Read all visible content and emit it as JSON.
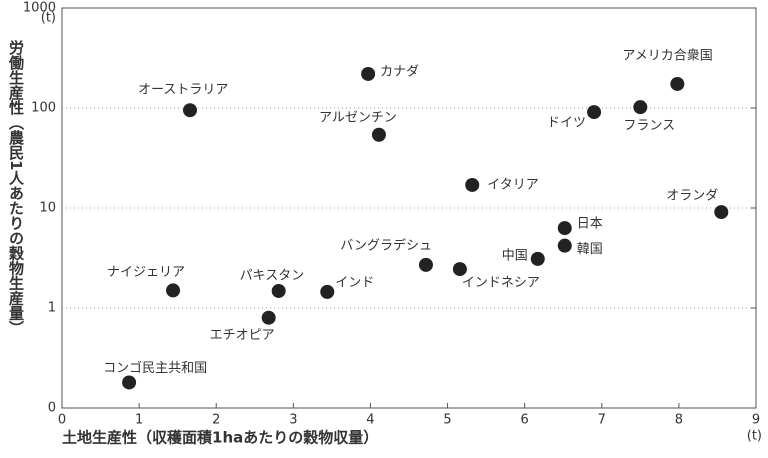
{
  "chart_data": {
    "type": "scatter",
    "xlabel": "土地生産性（収穫面積1haあたりの穀物収量）",
    "ylabel": "労働生産性（農民1人あたりの穀物生産量）",
    "x_unit": "(t)",
    "y_unit": "(t)",
    "labels": [
      "コンゴ民主共和国",
      "ナイジェリア",
      "オーストラリア",
      "エチオピア",
      "パキスタン",
      "インド",
      "カナダ",
      "アルゼンチン",
      "バングラデシュ",
      "インドネシア",
      "イタリア",
      "中国",
      "日本",
      "韓国",
      "ドイツ",
      "フランス",
      "アメリカ合衆国",
      "オランダ"
    ],
    "x": [
      0.87,
      1.44,
      1.66,
      2.68,
      2.81,
      3.44,
      3.97,
      4.11,
      4.72,
      5.16,
      5.32,
      6.17,
      6.52,
      6.52,
      6.9,
      7.5,
      7.98,
      8.55
    ],
    "values": [
      0.18,
      1.5,
      95,
      0.8,
      1.48,
      1.45,
      219,
      54,
      2.7,
      2.45,
      17,
      3.1,
      6.3,
      4.2,
      91,
      102,
      174,
      9.1
    ],
    "color": "#222222",
    "xlim": [
      0,
      9
    ],
    "xticks": [
      0,
      1,
      2,
      3,
      4,
      5,
      6,
      7,
      8,
      9
    ],
    "ylim": [
      0.1,
      1000
    ],
    "yticks": [
      {
        "value": 0.1,
        "label": "0"
      },
      1,
      10,
      100,
      1000
    ],
    "ylog": true,
    "grid": true
  }
}
